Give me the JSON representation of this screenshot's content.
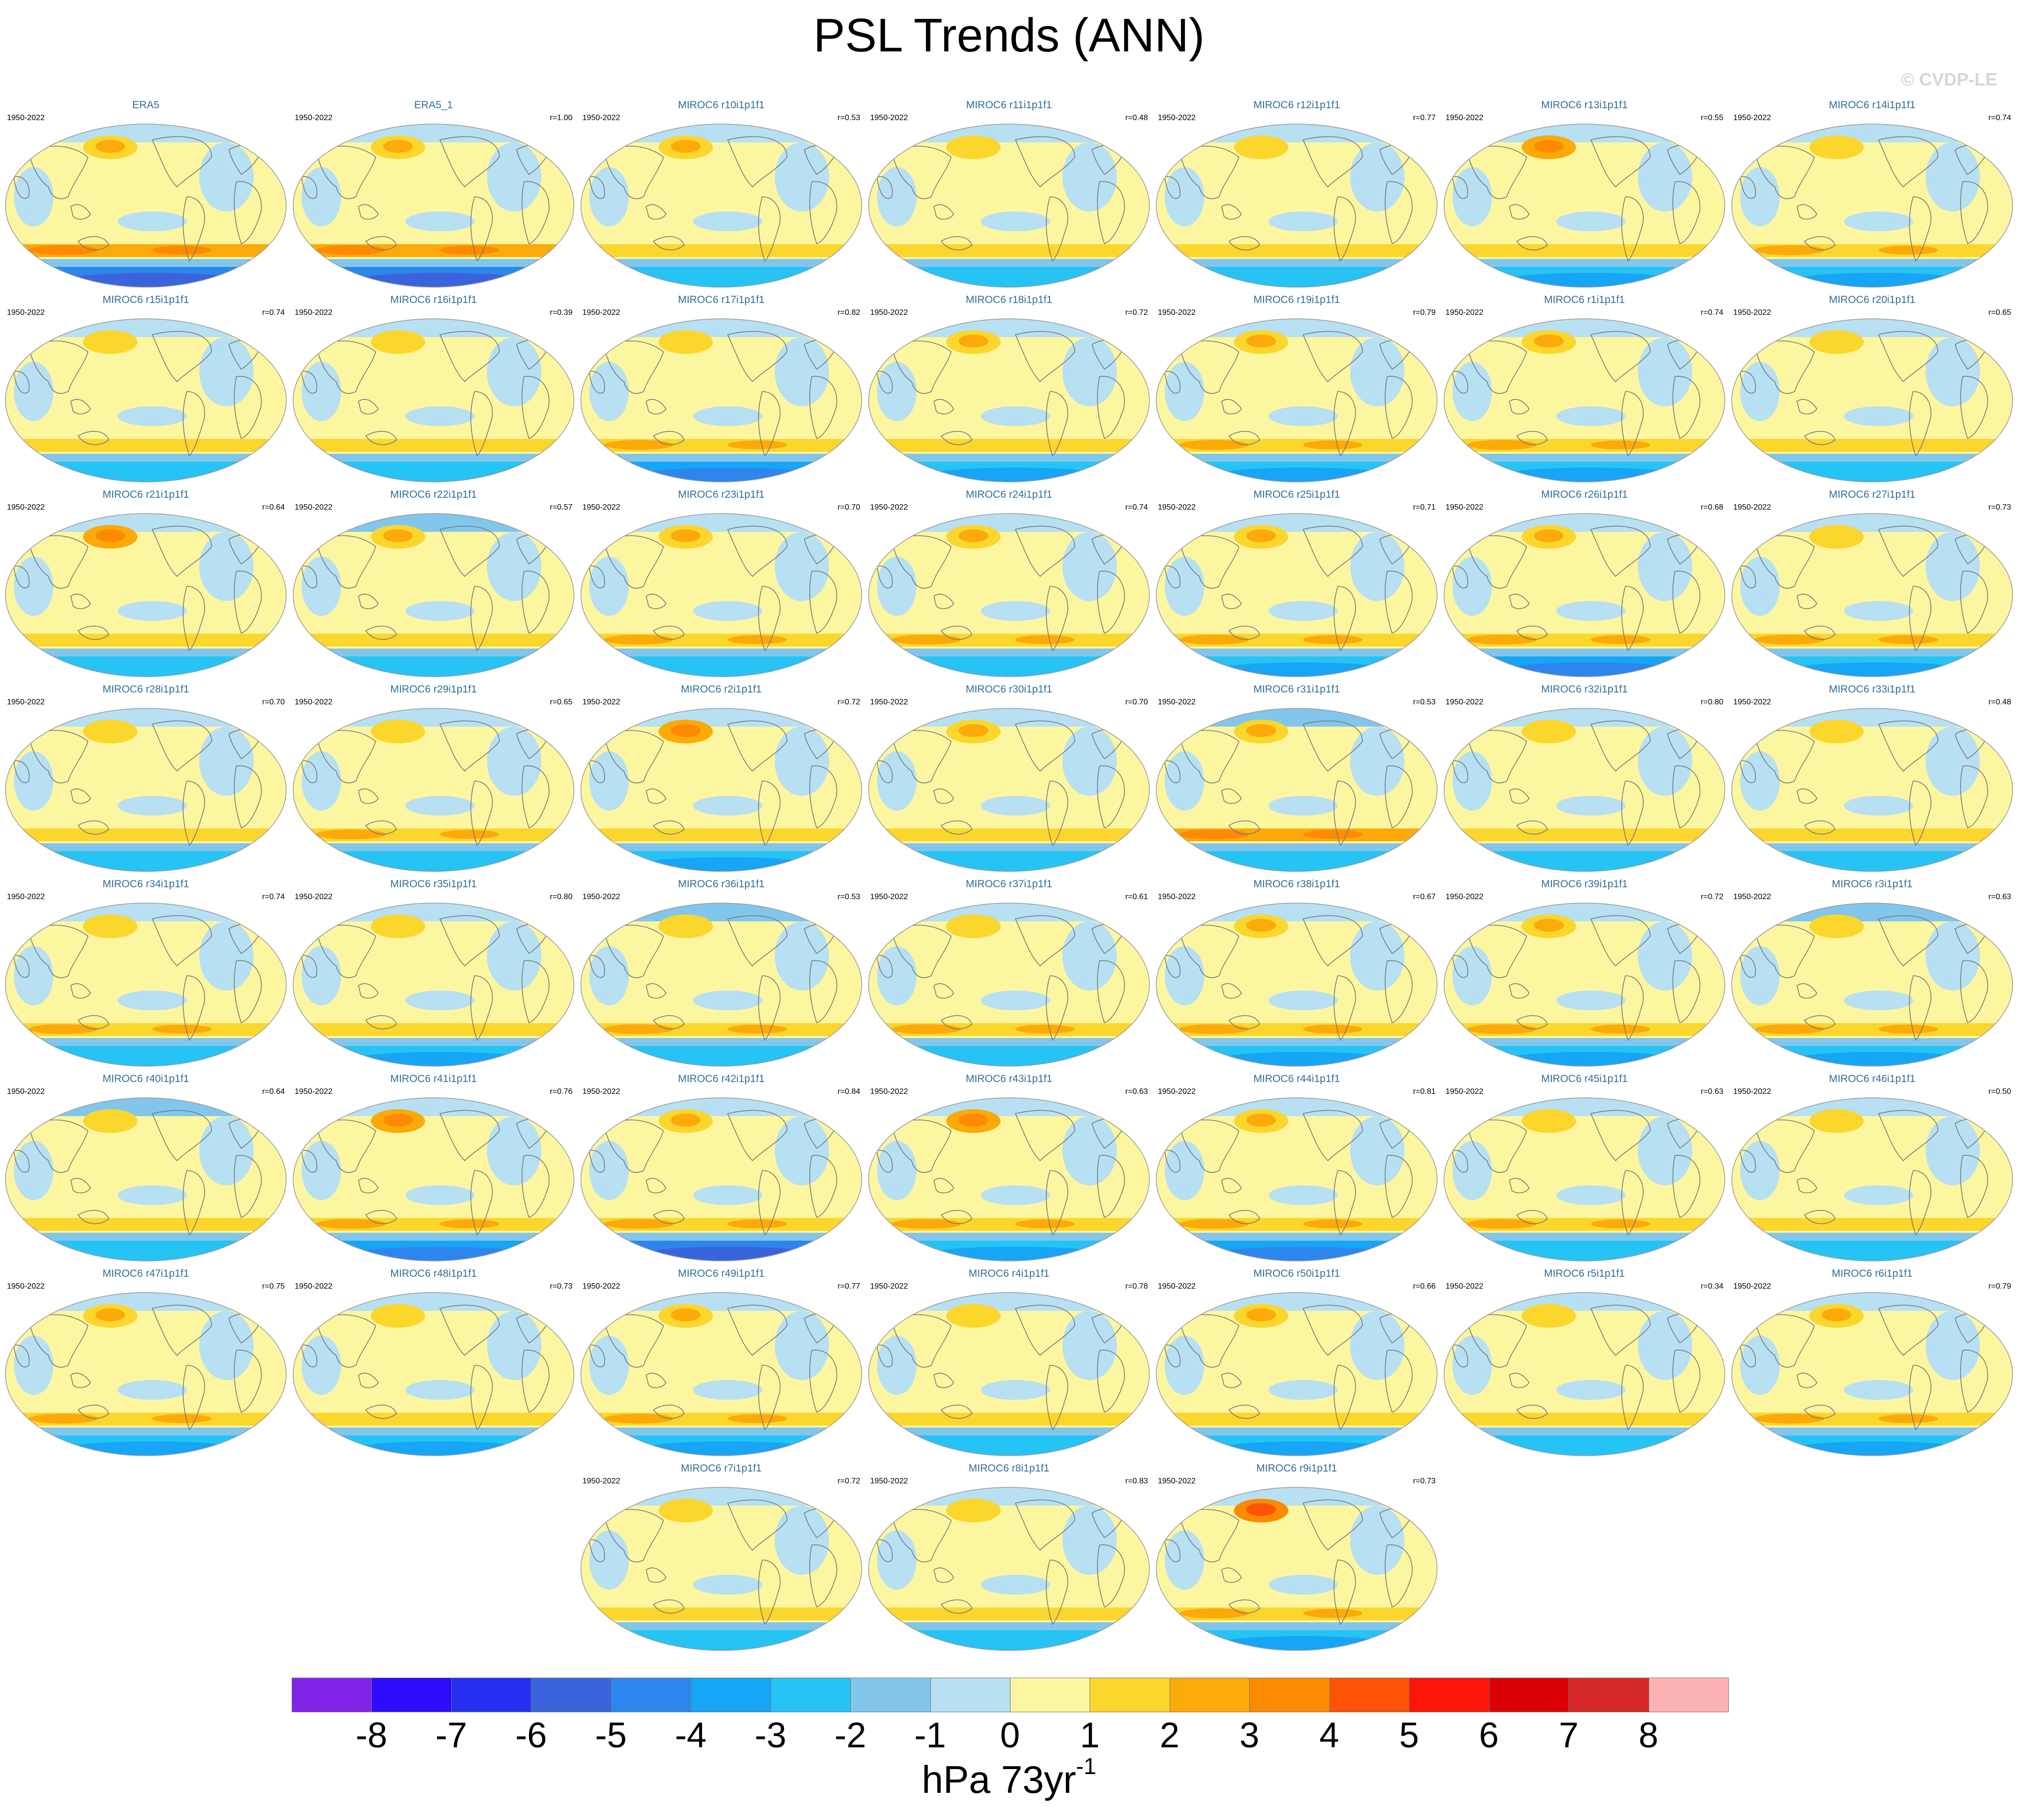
{
  "title": "PSL Trends (ANN)",
  "copyright": "© CVDP-LE",
  "colorbar": {
    "label_main": "hPa 73yr",
    "label_sup": "-1",
    "ticks": [
      "-8",
      "-7",
      "-6",
      "-5",
      "-4",
      "-3",
      "-2",
      "-1",
      "0",
      "1",
      "2",
      "3",
      "4",
      "5",
      "6",
      "7",
      "8"
    ],
    "colors": [
      "#8224e8",
      "#2d0dfb",
      "#2530f2",
      "#3a64dc",
      "#2d86ee",
      "#17a5f5",
      "#26c3f5",
      "#82c6ec",
      "#b7e0f3",
      "#fdf6a0",
      "#fbd62c",
      "#fbaa0a",
      "#fc8a03",
      "#fc5306",
      "#fb1607",
      "#db0207",
      "#d42828",
      "#fcb2b2"
    ],
    "wide_levels": [
      -9,
      -8,
      -7,
      -6,
      -5,
      -4,
      -3,
      -2,
      -1,
      0,
      1,
      2,
      3,
      4,
      5,
      6,
      7,
      8,
      9
    ]
  },
  "panels": [
    {
      "title": "ERA5",
      "years": "1950-2022",
      "r": "",
      "field": {
        "nh_high": 2,
        "nh_low": -1,
        "sh_mid": 3,
        "sh_low": -5
      }
    },
    {
      "title": "ERA5_1",
      "years": "1950-2022",
      "r": "r=1.00",
      "field": {
        "nh_high": 2,
        "nh_low": -1,
        "sh_mid": 3,
        "sh_low": -5
      }
    },
    {
      "title": "MIROC6 r10i1p1f1",
      "years": "1950-2022",
      "r": "r=0.53",
      "field": {
        "nh_high": 2,
        "nh_low": -1,
        "sh_mid": 1,
        "sh_low": -2
      }
    },
    {
      "title": "MIROC6 r11i1p1f1",
      "years": "1950-2022",
      "r": "r=0.48",
      "field": {
        "nh_high": 1,
        "nh_low": -1,
        "sh_mid": 1,
        "sh_low": -2
      }
    },
    {
      "title": "MIROC6 r12i1p1f1",
      "years": "1950-2022",
      "r": "r=0.77",
      "field": {
        "nh_high": 1,
        "nh_low": -1,
        "sh_mid": 1,
        "sh_low": -2
      }
    },
    {
      "title": "MIROC6 r13i1p1f1",
      "years": "1950-2022",
      "r": "r=0.55",
      "field": {
        "nh_high": 3,
        "nh_low": -1,
        "sh_mid": 1,
        "sh_low": -3
      }
    },
    {
      "title": "MIROC6 r14i1p1f1",
      "years": "1950-2022",
      "r": "r=0.74",
      "field": {
        "nh_high": 1,
        "nh_low": -1,
        "sh_mid": 2,
        "sh_low": -3
      }
    },
    {
      "title": "MIROC6 r15i1p1f1",
      "years": "1950-2022",
      "r": "r=0.74",
      "field": {
        "nh_high": 1,
        "nh_low": -1,
        "sh_mid": 1,
        "sh_low": -2
      }
    },
    {
      "title": "MIROC6 r16i1p1f1",
      "years": "1950-2022",
      "r": "r=0.39",
      "field": {
        "nh_high": 1,
        "nh_low": -1,
        "sh_mid": 1,
        "sh_low": -2
      }
    },
    {
      "title": "MIROC6 r17i1p1f1",
      "years": "1950-2022",
      "r": "r=0.82",
      "field": {
        "nh_high": 1,
        "nh_low": -1,
        "sh_mid": 2,
        "sh_low": -4
      }
    },
    {
      "title": "MIROC6 r18i1p1f1",
      "years": "1950-2022",
      "r": "r=0.72",
      "field": {
        "nh_high": 2,
        "nh_low": -1,
        "sh_mid": 1,
        "sh_low": -3
      }
    },
    {
      "title": "MIROC6 r19i1p1f1",
      "years": "1950-2022",
      "r": "r=0.79",
      "field": {
        "nh_high": 2,
        "nh_low": -1,
        "sh_mid": 2,
        "sh_low": -3
      }
    },
    {
      "title": "MIROC6 r1i1p1f1",
      "years": "1950-2022",
      "r": "r=0.74",
      "field": {
        "nh_high": 2,
        "nh_low": -1,
        "sh_mid": 2,
        "sh_low": -3
      }
    },
    {
      "title": "MIROC6 r20i1p1f1",
      "years": "1950-2022",
      "r": "r=0.65",
      "field": {
        "nh_high": 1,
        "nh_low": -1,
        "sh_mid": 1,
        "sh_low": -2
      }
    },
    {
      "title": "MIROC6 r21i1p1f1",
      "years": "1950-2022",
      "r": "r=0.64",
      "field": {
        "nh_high": 3,
        "nh_low": -1,
        "sh_mid": 1,
        "sh_low": -2
      }
    },
    {
      "title": "MIROC6 r22i1p1f1",
      "years": "1950-2022",
      "r": "r=0.57",
      "field": {
        "nh_high": 2,
        "nh_low": -2,
        "sh_mid": 1,
        "sh_low": -2
      }
    },
    {
      "title": "MIROC6 r23i1p1f1",
      "years": "1950-2022",
      "r": "r=0.70",
      "field": {
        "nh_high": 2,
        "nh_low": -1,
        "sh_mid": 2,
        "sh_low": -2
      }
    },
    {
      "title": "MIROC6 r24i1p1f1",
      "years": "1950-2022",
      "r": "r=0.74",
      "field": {
        "nh_high": 2,
        "nh_low": -1,
        "sh_mid": 2,
        "sh_low": -2
      }
    },
    {
      "title": "MIROC6 r25i1p1f1",
      "years": "1950-2022",
      "r": "r=0.71",
      "field": {
        "nh_high": 2,
        "nh_low": -1,
        "sh_mid": 2,
        "sh_low": -3
      }
    },
    {
      "title": "MIROC6 r26i1p1f1",
      "years": "1950-2022",
      "r": "r=0.68",
      "field": {
        "nh_high": 2,
        "nh_low": -1,
        "sh_mid": 2,
        "sh_low": -4
      }
    },
    {
      "title": "MIROC6 r27i1p1f1",
      "years": "1950-2022",
      "r": "r=0.73",
      "field": {
        "nh_high": 1,
        "nh_low": -1,
        "sh_mid": 2,
        "sh_low": -3
      }
    },
    {
      "title": "MIROC6 r28i1p1f1",
      "years": "1950-2022",
      "r": "r=0.70",
      "field": {
        "nh_high": 1,
        "nh_low": -1,
        "sh_mid": 1,
        "sh_low": -2
      }
    },
    {
      "title": "MIROC6 r29i1p1f1",
      "years": "1950-2022",
      "r": "r=0.65",
      "field": {
        "nh_high": 1,
        "nh_low": -1,
        "sh_mid": 2,
        "sh_low": -2
      }
    },
    {
      "title": "MIROC6 r2i1p1f1",
      "years": "1950-2022",
      "r": "r=0.72",
      "field": {
        "nh_high": 3,
        "nh_low": -1,
        "sh_mid": 1,
        "sh_low": -3
      }
    },
    {
      "title": "MIROC6 r30i1p1f1",
      "years": "1950-2022",
      "r": "r=0.70",
      "field": {
        "nh_high": 2,
        "nh_low": -1,
        "sh_mid": 1,
        "sh_low": -2
      }
    },
    {
      "title": "MIROC6 r31i1p1f1",
      "years": "1950-2022",
      "r": "r=0.53",
      "field": {
        "nh_high": 2,
        "nh_low": -2,
        "sh_mid": 3,
        "sh_low": -2
      }
    },
    {
      "title": "MIROC6 r32i1p1f1",
      "years": "1950-2022",
      "r": "r=0.80",
      "field": {
        "nh_high": 1,
        "nh_low": -1,
        "sh_mid": 1,
        "sh_low": -2
      }
    },
    {
      "title": "MIROC6 r33i1p1f1",
      "years": "1950-2022",
      "r": "r=0.48",
      "field": {
        "nh_high": 1,
        "nh_low": -1,
        "sh_mid": 1,
        "sh_low": -2
      }
    },
    {
      "title": "MIROC6 r34i1p1f1",
      "years": "1950-2022",
      "r": "r=0.74",
      "field": {
        "nh_high": 1,
        "nh_low": -1,
        "sh_mid": 2,
        "sh_low": -2
      }
    },
    {
      "title": "MIROC6 r35i1p1f1",
      "years": "1950-2022",
      "r": "r=0.80",
      "field": {
        "nh_high": 1,
        "nh_low": -1,
        "sh_mid": 1,
        "sh_low": -3
      }
    },
    {
      "title": "MIROC6 r36i1p1f1",
      "years": "1950-2022",
      "r": "r=0.53",
      "field": {
        "nh_high": 1,
        "nh_low": -2,
        "sh_mid": 2,
        "sh_low": -2
      }
    },
    {
      "title": "MIROC6 r37i1p1f1",
      "years": "1950-2022",
      "r": "r=0.61",
      "field": {
        "nh_high": 1,
        "nh_low": -1,
        "sh_mid": 2,
        "sh_low": -2
      }
    },
    {
      "title": "MIROC6 r38i1p1f1",
      "years": "1950-2022",
      "r": "r=0.67",
      "field": {
        "nh_high": 2,
        "nh_low": -1,
        "sh_mid": 2,
        "sh_low": -3
      }
    },
    {
      "title": "MIROC6 r39i1p1f1",
      "years": "1950-2022",
      "r": "r=0.72",
      "field": {
        "nh_high": 2,
        "nh_low": -1,
        "sh_mid": 2,
        "sh_low": -3
      }
    },
    {
      "title": "MIROC6 r3i1p1f1",
      "years": "1950-2022",
      "r": "r=0.63",
      "field": {
        "nh_high": 1,
        "nh_low": -2,
        "sh_mid": 2,
        "sh_low": -3
      }
    },
    {
      "title": "MIROC6 r40i1p1f1",
      "years": "1950-2022",
      "r": "r=0.64",
      "field": {
        "nh_high": 1,
        "nh_low": -2,
        "sh_mid": 1,
        "sh_low": -2
      }
    },
    {
      "title": "MIROC6 r41i1p1f1",
      "years": "1950-2022",
      "r": "r=0.76",
      "field": {
        "nh_high": 3,
        "nh_low": -1,
        "sh_mid": 2,
        "sh_low": -4
      }
    },
    {
      "title": "MIROC6 r42i1p1f1",
      "years": "1950-2022",
      "r": "r=0.84",
      "field": {
        "nh_high": 2,
        "nh_low": -1,
        "sh_mid": 2,
        "sh_low": -5
      }
    },
    {
      "title": "MIROC6 r43i1p1f1",
      "years": "1950-2022",
      "r": "r=0.63",
      "field": {
        "nh_high": 3,
        "nh_low": -1,
        "sh_mid": 2,
        "sh_low": -3
      }
    },
    {
      "title": "MIROC6 r44i1p1f1",
      "years": "1950-2022",
      "r": "r=0.81",
      "field": {
        "nh_high": 2,
        "nh_low": -1,
        "sh_mid": 2,
        "sh_low": -4
      }
    },
    {
      "title": "MIROC6 r45i1p1f1",
      "years": "1950-2022",
      "r": "r=0.63",
      "field": {
        "nh_high": 1,
        "nh_low": -1,
        "sh_mid": 2,
        "sh_low": -2
      }
    },
    {
      "title": "MIROC6 r46i1p1f1",
      "years": "1950-2022",
      "r": "r=0.50",
      "field": {
        "nh_high": 1,
        "nh_low": -1,
        "sh_mid": 1,
        "sh_low": -2
      }
    },
    {
      "title": "MIROC6 r47i1p1f1",
      "years": "1950-2022",
      "r": "r=0.75",
      "field": {
        "nh_high": 2,
        "nh_low": -1,
        "sh_mid": 2,
        "sh_low": -3
      }
    },
    {
      "title": "MIROC6 r48i1p1f1",
      "years": "1950-2022",
      "r": "r=0.73",
      "field": {
        "nh_high": 1,
        "nh_low": -1,
        "sh_mid": 1,
        "sh_low": -3
      }
    },
    {
      "title": "MIROC6 r49i1p1f1",
      "years": "1950-2022",
      "r": "r=0.77",
      "field": {
        "nh_high": 2,
        "nh_low": -1,
        "sh_mid": 2,
        "sh_low": -3
      }
    },
    {
      "title": "MIROC6 r4i1p1f1",
      "years": "1950-2022",
      "r": "r=0.78",
      "field": {
        "nh_high": 1,
        "nh_low": -1,
        "sh_mid": 1,
        "sh_low": -2
      }
    },
    {
      "title": "MIROC6 r50i1p1f1",
      "years": "1950-2022",
      "r": "r=0.66",
      "field": {
        "nh_high": 2,
        "nh_low": -1,
        "sh_mid": 1,
        "sh_low": -3
      }
    },
    {
      "title": "MIROC6 r5i1p1f1",
      "years": "1950-2022",
      "r": "r=0.34",
      "field": {
        "nh_high": 1,
        "nh_low": -1,
        "sh_mid": 1,
        "sh_low": -1
      }
    },
    {
      "title": "MIROC6 r6i1p1f1",
      "years": "1950-2022",
      "r": "r=0.79",
      "field": {
        "nh_high": 2,
        "nh_low": -1,
        "sh_mid": 2,
        "sh_low": -3
      }
    },
    {
      "title": "MIROC6 r7i1p1f1",
      "years": "1950-2022",
      "r": "r=0.72",
      "field": {
        "nh_high": 1,
        "nh_low": -1,
        "sh_mid": 1,
        "sh_low": -2
      }
    },
    {
      "title": "MIROC6 r8i1p1f1",
      "years": "1950-2022",
      "r": "r=0.83",
      "field": {
        "nh_high": 1,
        "nh_low": -1,
        "sh_mid": 1,
        "sh_low": -2
      }
    },
    {
      "title": "MIROC6 r9i1p1f1",
      "years": "1950-2022",
      "r": "r=0.73",
      "field": {
        "nh_high": 4,
        "nh_low": -1,
        "sh_mid": 2,
        "sh_low": -3
      }
    }
  ]
}
